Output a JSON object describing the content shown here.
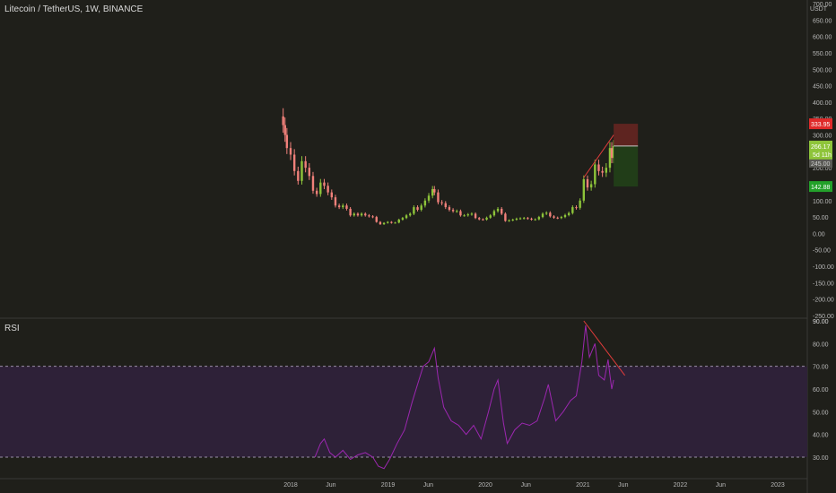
{
  "header": {
    "title": "Litecoin / TetherUS, 1W, BINANCE"
  },
  "chart_data": [
    {
      "type": "candlestick",
      "title": "Litecoin / TetherUS, 1W, BINANCE",
      "unit_label": "USDT",
      "ylim": [
        -250,
        700
      ],
      "y_ticks": [
        "700.00",
        "650.00",
        "600.00",
        "550.00",
        "500.00",
        "450.00",
        "400.00",
        "350.00",
        "300.00",
        "250.00",
        "200.00",
        "150.00",
        "100.00",
        "50.00",
        "0.00",
        "-50.00",
        "-100.00",
        "-150.00",
        "-200.00",
        "-250.00"
      ],
      "x_ticks": [
        "2018",
        "Jun",
        "2019",
        "Jun",
        "2020",
        "Jun",
        "2021",
        "Jun",
        "2022",
        "Jun",
        "2023"
      ],
      "x_tick_dates": [
        "2018-01-01",
        "2018-06-01",
        "2019-01-01",
        "2019-06-01",
        "2020-01-01",
        "2020-06-01",
        "2021-01-01",
        "2021-06-01",
        "2022-01-01",
        "2022-06-01",
        "2023-01-01"
      ],
      "close_series": [
        {
          "date": "2017-12-04",
          "value": 330
        },
        {
          "date": "2017-12-11",
          "value": 300
        },
        {
          "date": "2017-12-18",
          "value": 260
        },
        {
          "date": "2018-01-01",
          "value": 240
        },
        {
          "date": "2018-01-15",
          "value": 190
        },
        {
          "date": "2018-01-29",
          "value": 160
        },
        {
          "date": "2018-02-12",
          "value": 220
        },
        {
          "date": "2018-02-26",
          "value": 200
        },
        {
          "date": "2018-03-12",
          "value": 175
        },
        {
          "date": "2018-03-26",
          "value": 130
        },
        {
          "date": "2018-04-09",
          "value": 120
        },
        {
          "date": "2018-04-23",
          "value": 155
        },
        {
          "date": "2018-05-07",
          "value": 145
        },
        {
          "date": "2018-05-21",
          "value": 125
        },
        {
          "date": "2018-06-04",
          "value": 110
        },
        {
          "date": "2018-06-18",
          "value": 85
        },
        {
          "date": "2018-07-02",
          "value": 80
        },
        {
          "date": "2018-07-16",
          "value": 85
        },
        {
          "date": "2018-07-30",
          "value": 75
        },
        {
          "date": "2018-08-13",
          "value": 55
        },
        {
          "date": "2018-08-27",
          "value": 60
        },
        {
          "date": "2018-09-10",
          "value": 55
        },
        {
          "date": "2018-09-24",
          "value": 60
        },
        {
          "date": "2018-10-08",
          "value": 55
        },
        {
          "date": "2018-10-22",
          "value": 52
        },
        {
          "date": "2018-11-05",
          "value": 50
        },
        {
          "date": "2018-11-19",
          "value": 35
        },
        {
          "date": "2018-12-03",
          "value": 28
        },
        {
          "date": "2018-12-17",
          "value": 32
        },
        {
          "date": "2018-12-31",
          "value": 35
        },
        {
          "date": "2019-01-14",
          "value": 32
        },
        {
          "date": "2019-01-28",
          "value": 33
        },
        {
          "date": "2019-02-11",
          "value": 42
        },
        {
          "date": "2019-02-25",
          "value": 47
        },
        {
          "date": "2019-03-11",
          "value": 55
        },
        {
          "date": "2019-03-25",
          "value": 60
        },
        {
          "date": "2019-04-08",
          "value": 80
        },
        {
          "date": "2019-04-22",
          "value": 72
        },
        {
          "date": "2019-05-06",
          "value": 85
        },
        {
          "date": "2019-05-20",
          "value": 100
        },
        {
          "date": "2019-06-03",
          "value": 115
        },
        {
          "date": "2019-06-17",
          "value": 135
        },
        {
          "date": "2019-06-24",
          "value": 125
        },
        {
          "date": "2019-07-08",
          "value": 95
        },
        {
          "date": "2019-07-22",
          "value": 92
        },
        {
          "date": "2019-08-05",
          "value": 80
        },
        {
          "date": "2019-08-19",
          "value": 72
        },
        {
          "date": "2019-09-02",
          "value": 68
        },
        {
          "date": "2019-09-16",
          "value": 68
        },
        {
          "date": "2019-09-30",
          "value": 55
        },
        {
          "date": "2019-10-14",
          "value": 55
        },
        {
          "date": "2019-10-28",
          "value": 58
        },
        {
          "date": "2019-11-11",
          "value": 60
        },
        {
          "date": "2019-11-25",
          "value": 47
        },
        {
          "date": "2019-12-09",
          "value": 43
        },
        {
          "date": "2019-12-23",
          "value": 42
        },
        {
          "date": "2020-01-06",
          "value": 48
        },
        {
          "date": "2020-01-20",
          "value": 55
        },
        {
          "date": "2020-02-03",
          "value": 68
        },
        {
          "date": "2020-02-17",
          "value": 75
        },
        {
          "date": "2020-03-02",
          "value": 60
        },
        {
          "date": "2020-03-16",
          "value": 38
        },
        {
          "date": "2020-03-30",
          "value": 40
        },
        {
          "date": "2020-04-13",
          "value": 42
        },
        {
          "date": "2020-04-27",
          "value": 45
        },
        {
          "date": "2020-05-11",
          "value": 46
        },
        {
          "date": "2020-05-25",
          "value": 47
        },
        {
          "date": "2020-06-08",
          "value": 45
        },
        {
          "date": "2020-06-22",
          "value": 42
        },
        {
          "date": "2020-07-06",
          "value": 43
        },
        {
          "date": "2020-07-20",
          "value": 50
        },
        {
          "date": "2020-08-03",
          "value": 60
        },
        {
          "date": "2020-08-17",
          "value": 63
        },
        {
          "date": "2020-08-31",
          "value": 52
        },
        {
          "date": "2020-09-14",
          "value": 48
        },
        {
          "date": "2020-09-28",
          "value": 47
        },
        {
          "date": "2020-10-12",
          "value": 50
        },
        {
          "date": "2020-10-26",
          "value": 56
        },
        {
          "date": "2020-11-09",
          "value": 62
        },
        {
          "date": "2020-11-23",
          "value": 80
        },
        {
          "date": "2020-12-07",
          "value": 78
        },
        {
          "date": "2020-12-21",
          "value": 100
        },
        {
          "date": "2021-01-04",
          "value": 165
        },
        {
          "date": "2021-01-18",
          "value": 140
        },
        {
          "date": "2021-02-01",
          "value": 150
        },
        {
          "date": "2021-02-15",
          "value": 210
        },
        {
          "date": "2021-03-01",
          "value": 190
        },
        {
          "date": "2021-03-15",
          "value": 185
        },
        {
          "date": "2021-03-29",
          "value": 200
        },
        {
          "date": "2021-04-12",
          "value": 260
        },
        {
          "date": "2021-04-19",
          "value": 230
        },
        {
          "date": "2021-04-26",
          "value": 266.17
        }
      ],
      "price_labels": {
        "stop": "333.95",
        "current": "266.17",
        "countdown": "5d 11h",
        "hidden_level": "245.00",
        "target": "142.88"
      },
      "position": {
        "direction": "short",
        "entry": 266.17,
        "stop": 333.95,
        "target": 142.88,
        "start_date": "2021-04-26",
        "end_date": "2021-07-26",
        "colors": {
          "risk": "#5e2420",
          "reward": "#213d18"
        }
      },
      "trendline": {
        "color": "#e03b3b",
        "from": {
          "date": "2021-01-04",
          "value": 170
        },
        "to": {
          "date": "2021-04-26",
          "value": 300
        }
      },
      "colors": {
        "up": "#8ec43a",
        "down": "#f0807a",
        "current_label": "#8ec43a",
        "stop_label": "#e02a2a",
        "target_label": "#23a12a"
      }
    },
    {
      "type": "line",
      "title": "RSI",
      "ylim": [
        25,
        90
      ],
      "y_ticks": [
        "90.00",
        "80.00",
        "70.00",
        "60.00",
        "50.00",
        "40.00",
        "30.00"
      ],
      "bands": {
        "upper": 70,
        "lower": 30,
        "fill": "#2e2138"
      },
      "series": [
        {
          "color": "#9c27b0",
          "points": [
            {
              "date": "2018-04-02",
              "value": 30
            },
            {
              "date": "2018-04-23",
              "value": 36
            },
            {
              "date": "2018-05-07",
              "value": 38
            },
            {
              "date": "2018-05-28",
              "value": 32
            },
            {
              "date": "2018-06-18",
              "value": 30
            },
            {
              "date": "2018-07-16",
              "value": 33
            },
            {
              "date": "2018-08-13",
              "value": 29
            },
            {
              "date": "2018-09-10",
              "value": 31
            },
            {
              "date": "2018-10-08",
              "value": 32
            },
            {
              "date": "2018-11-05",
              "value": 30
            },
            {
              "date": "2018-11-26",
              "value": 26
            },
            {
              "date": "2018-12-17",
              "value": 25
            },
            {
              "date": "2019-01-07",
              "value": 29
            },
            {
              "date": "2019-02-04",
              "value": 36
            },
            {
              "date": "2019-03-04",
              "value": 42
            },
            {
              "date": "2019-04-01",
              "value": 54
            },
            {
              "date": "2019-04-22",
              "value": 62
            },
            {
              "date": "2019-05-13",
              "value": 70
            },
            {
              "date": "2019-06-03",
              "value": 72
            },
            {
              "date": "2019-06-24",
              "value": 78
            },
            {
              "date": "2019-07-08",
              "value": 65
            },
            {
              "date": "2019-07-29",
              "value": 52
            },
            {
              "date": "2019-08-26",
              "value": 46
            },
            {
              "date": "2019-09-23",
              "value": 44
            },
            {
              "date": "2019-10-21",
              "value": 40
            },
            {
              "date": "2019-11-18",
              "value": 44
            },
            {
              "date": "2019-12-16",
              "value": 38
            },
            {
              "date": "2020-01-13",
              "value": 50
            },
            {
              "date": "2020-02-03",
              "value": 60
            },
            {
              "date": "2020-02-17",
              "value": 64
            },
            {
              "date": "2020-03-09",
              "value": 45
            },
            {
              "date": "2020-03-23",
              "value": 36
            },
            {
              "date": "2020-04-20",
              "value": 42
            },
            {
              "date": "2020-05-18",
              "value": 45
            },
            {
              "date": "2020-06-15",
              "value": 44
            },
            {
              "date": "2020-07-13",
              "value": 46
            },
            {
              "date": "2020-08-10",
              "value": 56
            },
            {
              "date": "2020-08-24",
              "value": 62
            },
            {
              "date": "2020-09-21",
              "value": 46
            },
            {
              "date": "2020-10-19",
              "value": 50
            },
            {
              "date": "2020-11-16",
              "value": 55
            },
            {
              "date": "2020-12-07",
              "value": 57
            },
            {
              "date": "2020-12-28",
              "value": 72
            },
            {
              "date": "2021-01-11",
              "value": 88
            },
            {
              "date": "2021-01-25",
              "value": 74
            },
            {
              "date": "2021-02-15",
              "value": 80
            },
            {
              "date": "2021-03-01",
              "value": 66
            },
            {
              "date": "2021-03-22",
              "value": 64
            },
            {
              "date": "2021-04-05",
              "value": 73
            },
            {
              "date": "2021-04-12",
              "value": 66
            },
            {
              "date": "2021-04-19",
              "value": 60
            },
            {
              "date": "2021-04-26",
              "value": 64
            }
          ]
        }
      ],
      "trendline": {
        "color": "#e03b3b",
        "from": {
          "date": "2021-01-04",
          "value": 90
        },
        "to": {
          "date": "2021-06-07",
          "value": 66
        }
      },
      "current_label": "90.00"
    }
  ]
}
